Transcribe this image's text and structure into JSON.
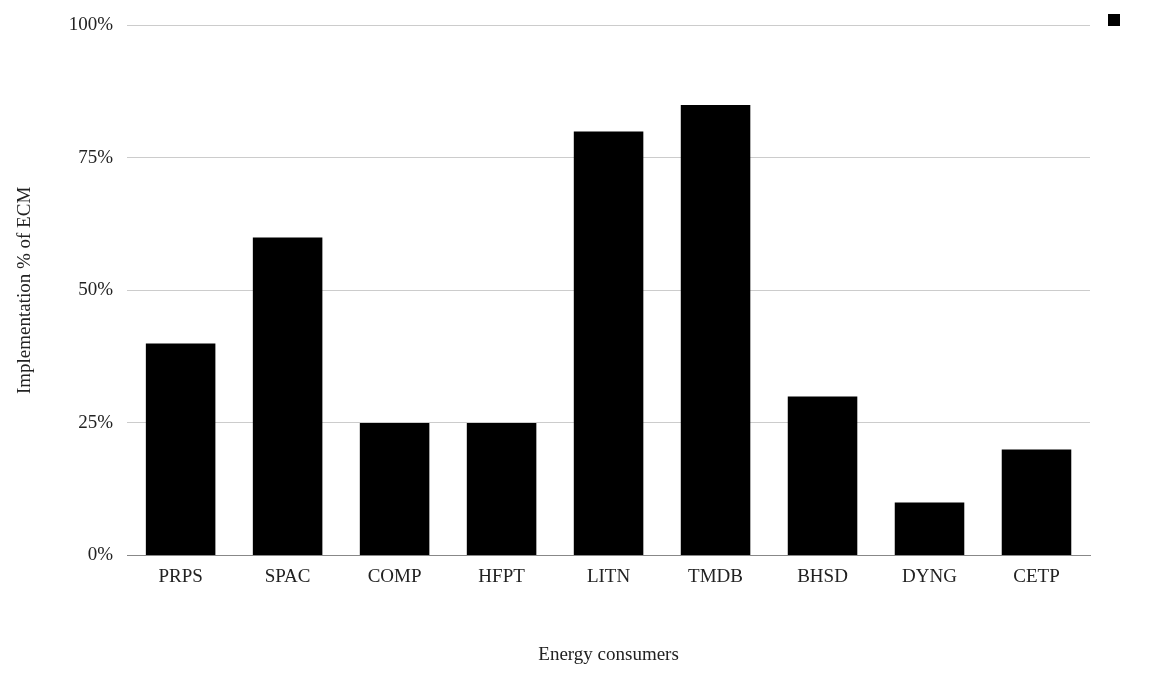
{
  "chart_data": {
    "type": "bar",
    "xlabel": "Energy consumers",
    "ylabel": "Implementation % of ECM",
    "categories": [
      "PRPS",
      "SPAC",
      "COMP",
      "HFPT",
      "LITN",
      "TMDB",
      "BHSD",
      "DYNG",
      "CETP"
    ],
    "values": [
      40,
      60,
      25,
      25,
      80,
      85,
      30,
      10,
      20
    ],
    "color": "#000000",
    "ylim": [
      0,
      100
    ],
    "yticks": [
      {
        "value": 0,
        "label": "0%"
      },
      {
        "value": 25,
        "label": "25%"
      },
      {
        "value": 50,
        "label": "50%"
      },
      {
        "value": 75,
        "label": "75%"
      },
      {
        "value": 100,
        "label": "100%"
      }
    ],
    "grid": "y"
  }
}
